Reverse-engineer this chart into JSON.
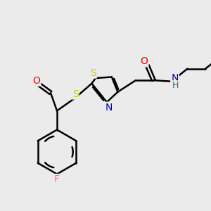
{
  "bg_color": "#ebebeb",
  "bond_color": "#000000",
  "bond_width": 1.8,
  "atom_colors": {
    "S": "#cccc00",
    "N": "#0000cc",
    "O": "#ff0000",
    "F": "#ff69b4",
    "H": "#008080",
    "C": "#000000"
  },
  "font_size": 9,
  "figsize": [
    3.0,
    3.0
  ],
  "dpi": 100
}
